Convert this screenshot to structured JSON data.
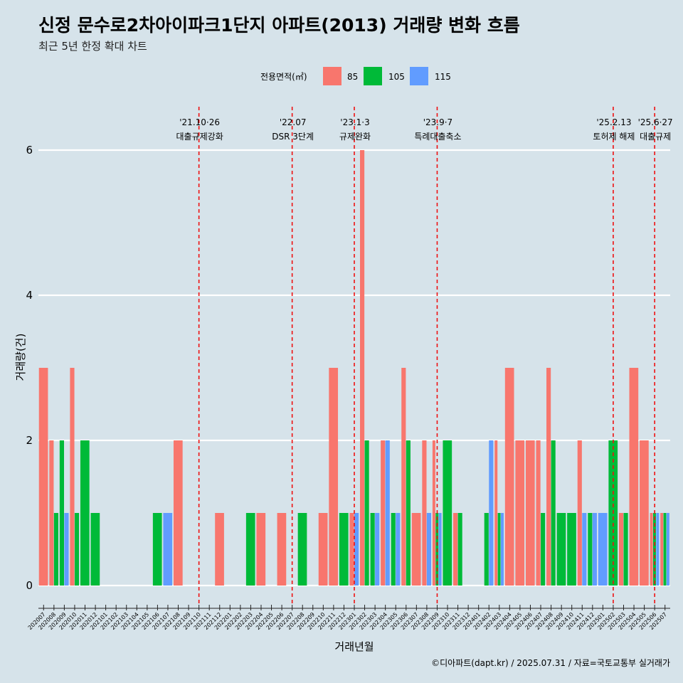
{
  "chart_data": {
    "type": "bar",
    "title": "신정 문수로2차아이파크1단지 아파트(2013) 거래량 변화 흐름",
    "subtitle": "최근 5년 한정 확대 차트",
    "xlabel": "거래년월",
    "ylabel": "거래량(건)",
    "ylim": [
      -0.3,
      6.6
    ],
    "yticks": [
      0,
      2,
      4,
      6
    ],
    "legend": {
      "title": "전용면적(㎡)",
      "placement": "top",
      "entries": [
        {
          "name": "85",
          "color": "#f8766d"
        },
        {
          "name": "105",
          "color": "#00ba38"
        },
        {
          "name": "115",
          "color": "#619cff"
        }
      ]
    },
    "months": [
      "202007",
      "202008",
      "202009",
      "202010",
      "202011",
      "202012",
      "202101",
      "202102",
      "202103",
      "202104",
      "202105",
      "202106",
      "202107",
      "202108",
      "202109",
      "202110",
      "202111",
      "202112",
      "202201",
      "202202",
      "202203",
      "202204",
      "202205",
      "202206",
      "202207",
      "202208",
      "202209",
      "202210",
      "202211",
      "202212",
      "202301",
      "202302",
      "202303",
      "202304",
      "202305",
      "202306",
      "202307",
      "202308",
      "202309",
      "202310",
      "202311",
      "202312",
      "202401",
      "202402",
      "202403",
      "202404",
      "202405",
      "202406",
      "202407",
      "202408",
      "202409",
      "202410",
      "202411",
      "202412",
      "202501",
      "202502",
      "202503",
      "202504",
      "202505",
      "202506",
      "202507"
    ],
    "series": [
      {
        "name": "85",
        "color": "#f8766d",
        "values": {
          "202007": 3,
          "202008": 2,
          "202010": 3,
          "202108": 2,
          "202112": 1,
          "202204": 1,
          "202206": 1,
          "202210": 1,
          "202211": 3,
          "202301": 1,
          "202302": 6,
          "202304": 2,
          "202306": 3,
          "202307": 1,
          "202308": 2,
          "202309": 2,
          "202311": 1,
          "202403": 2,
          "202404": 3,
          "202405": 2,
          "202406": 2,
          "202407": 2,
          "202408": 3,
          "202411": 2,
          "202503": 1,
          "202504": 3,
          "202505": 2,
          "202506": 1,
          "202507": 1
        }
      },
      {
        "name": "105",
        "color": "#00ba38",
        "values": {
          "202008": 1,
          "202009": 2,
          "202010": 1,
          "202011": 2,
          "202012": 1,
          "202106": 1,
          "202203": 1,
          "202208": 1,
          "202212": 1,
          "202302": 2,
          "202303": 1,
          "202305": 1,
          "202306": 2,
          "202309": 1,
          "202310": 2,
          "202311": 1,
          "202402": 1,
          "202403": 1,
          "202407": 1,
          "202408": 2,
          "202409": 1,
          "202410": 1,
          "202412": 1,
          "202502": 2,
          "202503": 1,
          "202506": 1,
          "202507": 1
        }
      },
      {
        "name": "115",
        "color": "#619cff",
        "values": {
          "202009": 1,
          "202107": 1,
          "202301": 1,
          "202303": 1,
          "202304": 2,
          "202305": 1,
          "202308": 1,
          "202309": 1,
          "202402": 2,
          "202403": 1,
          "202411": 1,
          "202412": 1,
          "202501": 1,
          "202506": 1,
          "202507": 1
        }
      }
    ],
    "events": [
      {
        "month": "202110",
        "date": "'21.10·26",
        "label": "대출규제강화"
      },
      {
        "month": "202207",
        "date": "'22.07",
        "label": "DSR 3단계"
      },
      {
        "month": "202301",
        "date": "'23.1·3",
        "label": "규제완화"
      },
      {
        "month": "202309",
        "date": "'23.9·7",
        "label": "특례대출축소"
      },
      {
        "month": "202502",
        "date": "'25.2.13",
        "label": "토허제 해제"
      },
      {
        "month": "202506",
        "date": "'25.6·27",
        "label": "대출규제"
      }
    ],
    "caption": "©디아파트(dapt.kr) / 2025.07.31 / 자료=국토교통부 실거래가",
    "grid": true
  }
}
